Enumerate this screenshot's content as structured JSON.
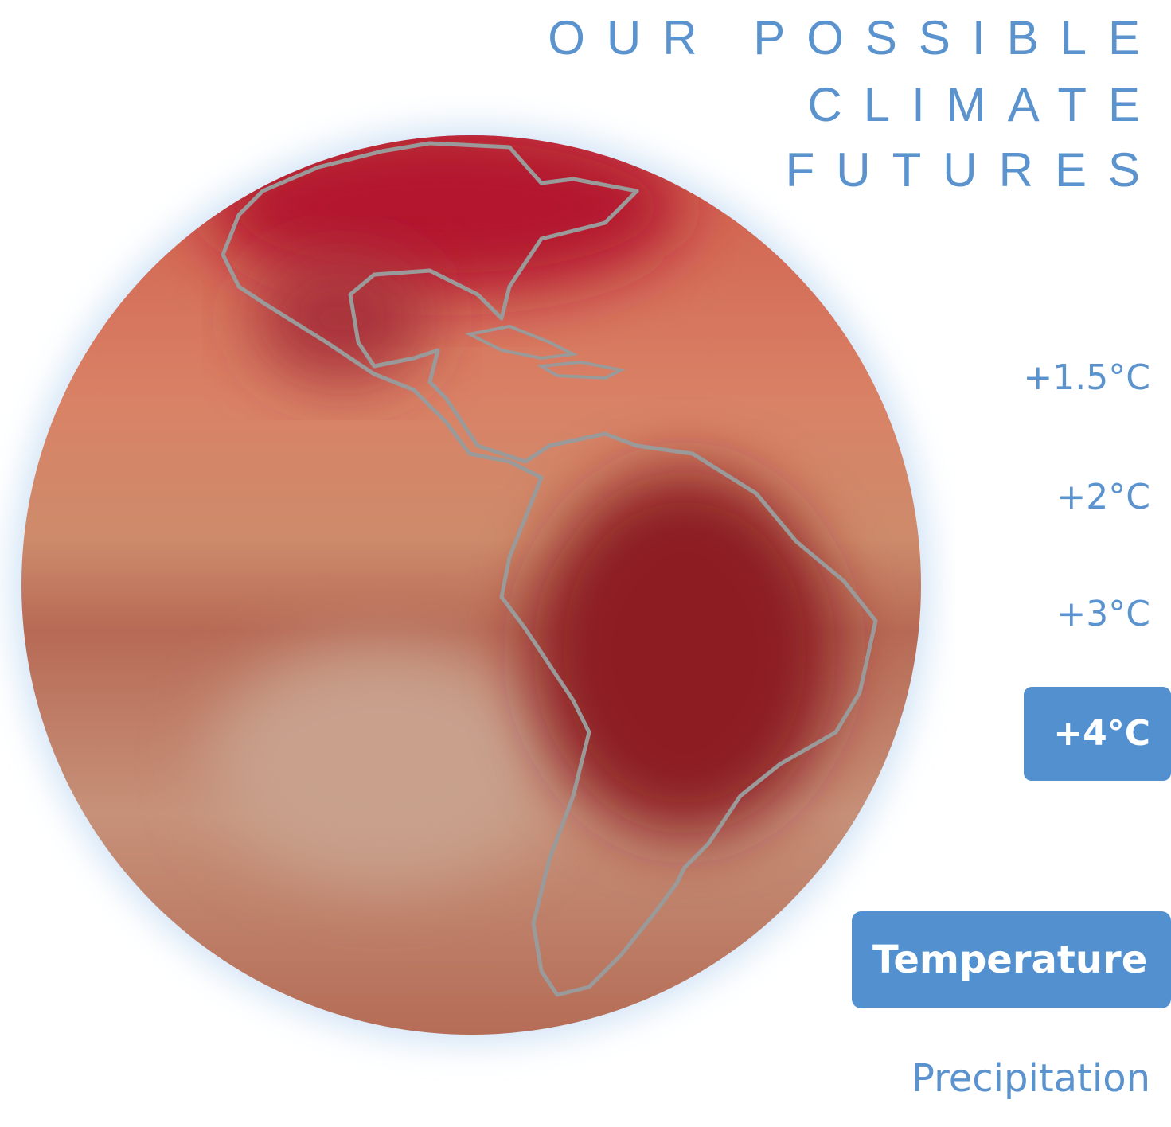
{
  "title_lines": [
    "OUR POSSIBLE",
    "CLIMATE",
    "FUTURES"
  ],
  "warming_options": [
    {
      "label": "+1.5°C",
      "active": false
    },
    {
      "label": "+2°C",
      "active": false
    },
    {
      "label": "+3°C",
      "active": false
    },
    {
      "label": "+4°C",
      "active": true
    }
  ],
  "variables": [
    {
      "label": "Temperature",
      "active": true
    },
    {
      "label": "Precipitation",
      "active": false
    }
  ]
}
